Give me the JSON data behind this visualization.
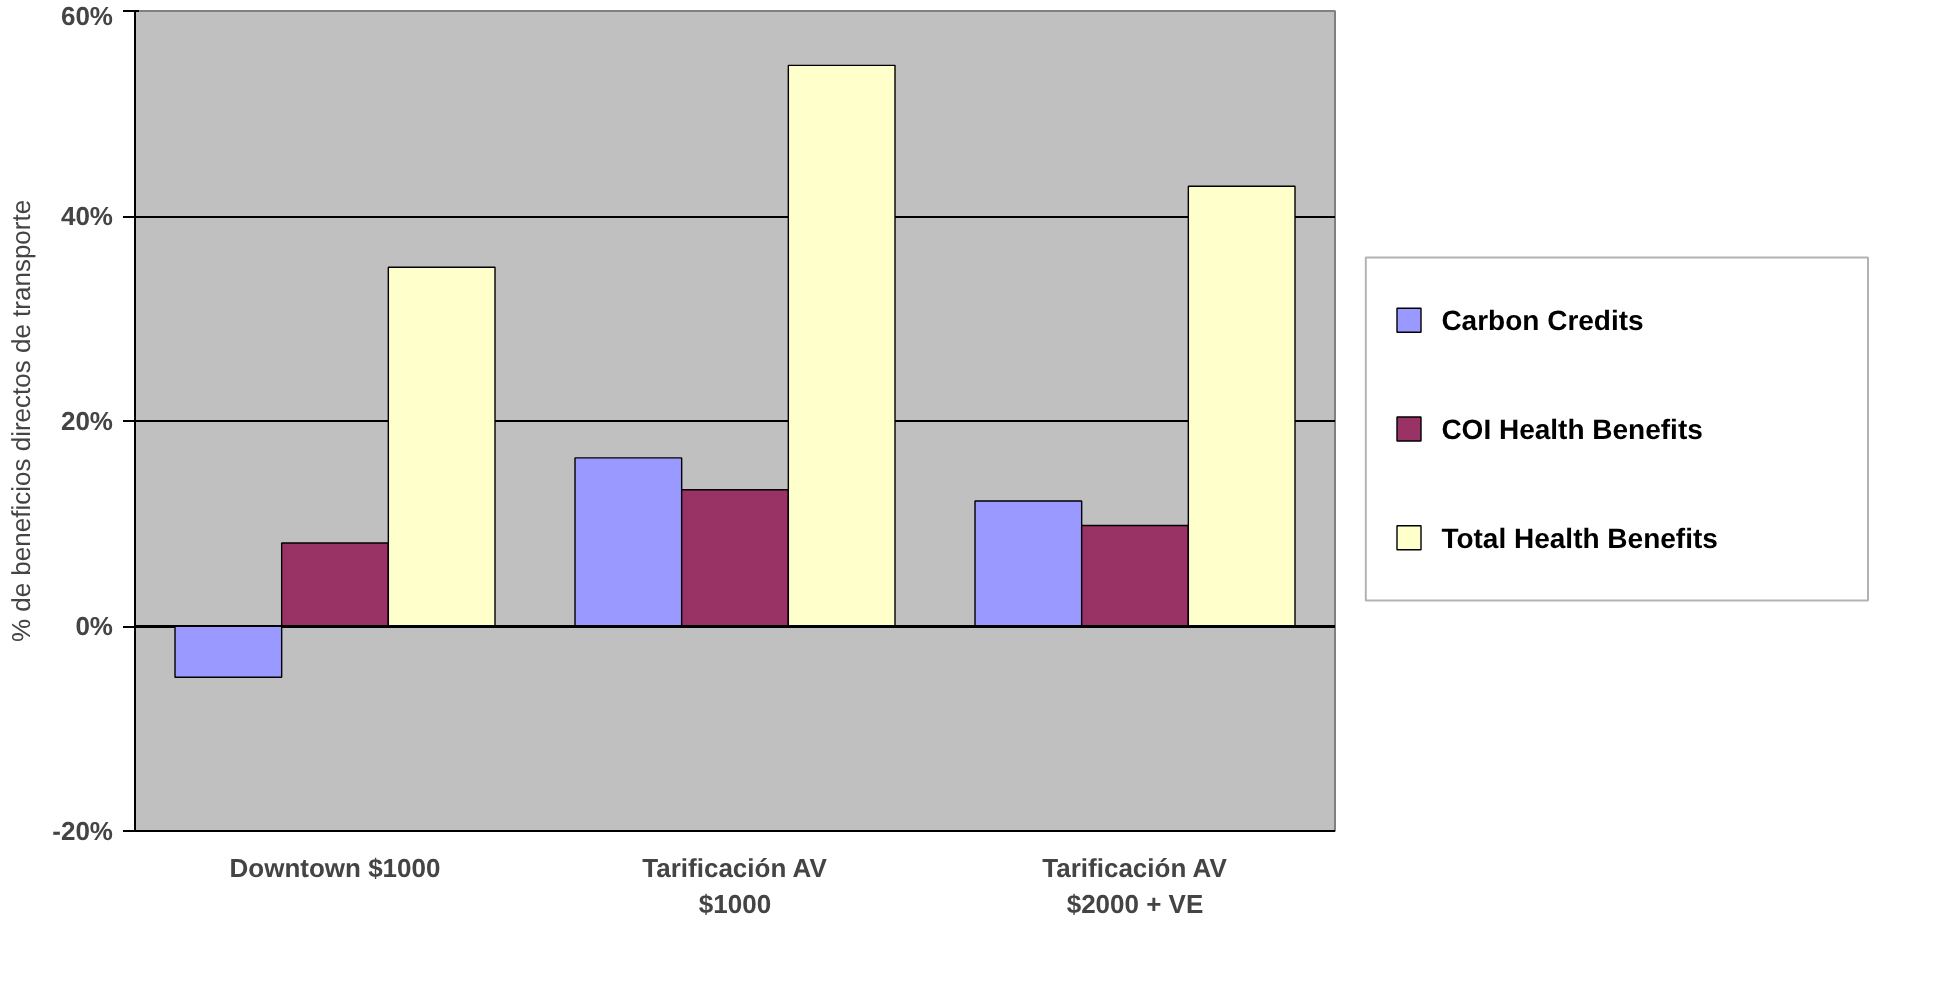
{
  "chart_data": {
    "type": "bar",
    "ylabel": "% de beneficios directos de transporte",
    "categories": [
      "Downtown $1000",
      "Tarificación AV\n$1000",
      "Tarificación AV\n$2000 + VE"
    ],
    "series": [
      {
        "name": "Carbon Credits",
        "color": "#9999ff",
        "values": [
          -5,
          16.4,
          12.2
        ]
      },
      {
        "name": "COI Health Benefits",
        "color": "#993366",
        "values": [
          8.1,
          13.3,
          9.8
        ]
      },
      {
        "name": "Total Health Benefits",
        "color": "#ffffcc",
        "values": [
          35,
          54.7,
          42.9
        ]
      }
    ],
    "ylim": [
      -20,
      60
    ],
    "yticks": [
      {
        "value": -20,
        "label": "-20%"
      },
      {
        "value": 0,
        "label": "0%"
      },
      {
        "value": 20,
        "label": "20%"
      },
      {
        "value": 40,
        "label": "40%"
      },
      {
        "value": 60,
        "label": "60%"
      }
    ],
    "grid": "y",
    "legend": "right"
  }
}
